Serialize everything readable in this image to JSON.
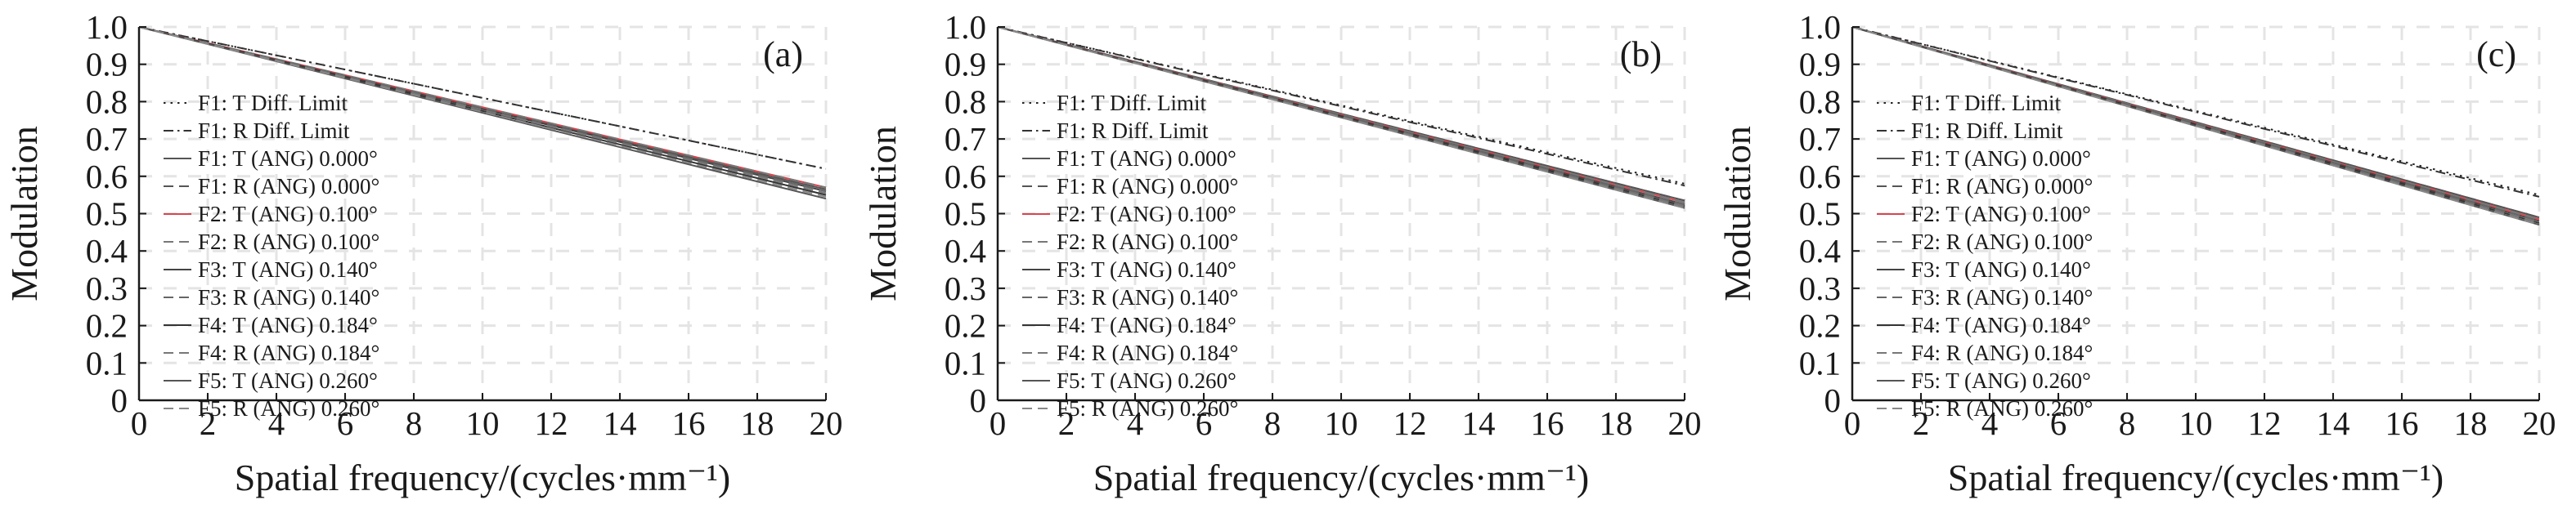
{
  "chart_data": [
    {
      "type": "line",
      "panel_label": "(a)",
      "xlabel": "Spatial frequency/(cycles·mm⁻¹)",
      "ylabel": "Modulation",
      "xlim": [
        0,
        20
      ],
      "ylim": [
        0,
        1.0
      ],
      "x_ticks": [
        "0",
        "2",
        "4",
        "6",
        "8",
        "10",
        "12",
        "14",
        "16",
        "18",
        "20"
      ],
      "y_ticks": [
        "0",
        "0.1",
        "0.2",
        "0.3",
        "0.4",
        "0.5",
        "0.6",
        "0.7",
        "0.8",
        "0.9",
        "1.0"
      ],
      "grid": true,
      "legend_position": "left",
      "series": [
        {
          "name": "F1: T Diff. Limit",
          "style": "dotted",
          "color": "#222222",
          "x": [
            0,
            20
          ],
          "y": [
            1.0,
            0.62
          ]
        },
        {
          "name": "F1: R Diff. Limit",
          "style": "dashdot",
          "color": "#333333",
          "x": [
            0,
            20
          ],
          "y": [
            1.0,
            0.62
          ]
        },
        {
          "name": "F1: T (ANG) 0.000°",
          "style": "solid",
          "color": "#555555",
          "x": [
            0,
            20
          ],
          "y": [
            1.0,
            0.565
          ]
        },
        {
          "name": "F1: R (ANG) 0.000°",
          "style": "dashed",
          "color": "#555555",
          "x": [
            0,
            20
          ],
          "y": [
            1.0,
            0.565
          ]
        },
        {
          "name": "F2: T (ANG) 0.100°",
          "style": "solid",
          "color": "#d8454f",
          "x": [
            0,
            20
          ],
          "y": [
            1.0,
            0.57
          ]
        },
        {
          "name": "F2: R (ANG) 0.100°",
          "style": "dashed",
          "color": "#777777",
          "x": [
            0,
            20
          ],
          "y": [
            1.0,
            0.57
          ]
        },
        {
          "name": "F3: T (ANG) 0.140°",
          "style": "solid",
          "color": "#444444",
          "x": [
            0,
            20
          ],
          "y": [
            1.0,
            0.56
          ]
        },
        {
          "name": "F3: R (ANG) 0.140°",
          "style": "dashed",
          "color": "#666666",
          "x": [
            0,
            20
          ],
          "y": [
            1.0,
            0.56
          ]
        },
        {
          "name": "F4: T (ANG) 0.184°",
          "style": "solid",
          "color": "#333333",
          "x": [
            0,
            20
          ],
          "y": [
            1.0,
            0.55
          ]
        },
        {
          "name": "F4: R (ANG) 0.184°",
          "style": "dashed",
          "color": "#777777",
          "x": [
            0,
            20
          ],
          "y": [
            1.0,
            0.555
          ]
        },
        {
          "name": "F5: T (ANG) 0.260°",
          "style": "solid",
          "color": "#555555",
          "x": [
            0,
            20
          ],
          "y": [
            1.0,
            0.54
          ]
        },
        {
          "name": "F5: R (ANG) 0.260°",
          "style": "dashed",
          "color": "#888888",
          "x": [
            0,
            20
          ],
          "y": [
            1.0,
            0.545
          ]
        }
      ]
    },
    {
      "type": "line",
      "panel_label": "(b)",
      "xlabel": "Spatial frequency/(cycles·mm⁻¹)",
      "ylabel": "Modulation",
      "xlim": [
        0,
        20
      ],
      "ylim": [
        0,
        1.0
      ],
      "x_ticks": [
        "0",
        "2",
        "4",
        "6",
        "8",
        "10",
        "12",
        "14",
        "16",
        "18",
        "20"
      ],
      "y_ticks": [
        "0",
        "0.1",
        "0.2",
        "0.3",
        "0.4",
        "0.5",
        "0.6",
        "0.7",
        "0.8",
        "0.9",
        "1.0"
      ],
      "grid": true,
      "legend_position": "left",
      "series": [
        {
          "name": "F1: T Diff. Limit",
          "style": "dotted",
          "color": "#222222",
          "x": [
            0,
            20
          ],
          "y": [
            1.0,
            0.58
          ]
        },
        {
          "name": "F1: R Diff. Limit",
          "style": "dashdot",
          "color": "#333333",
          "x": [
            0,
            20
          ],
          "y": [
            1.0,
            0.575
          ]
        },
        {
          "name": "F1: T (ANG) 0.000°",
          "style": "solid",
          "color": "#555555",
          "x": [
            0,
            20
          ],
          "y": [
            1.0,
            0.535
          ]
        },
        {
          "name": "F1: R (ANG) 0.000°",
          "style": "dashed",
          "color": "#555555",
          "x": [
            0,
            20
          ],
          "y": [
            1.0,
            0.535
          ]
        },
        {
          "name": "F2: T (ANG) 0.100°",
          "style": "solid",
          "color": "#d8454f",
          "x": [
            0,
            20
          ],
          "y": [
            1.0,
            0.53
          ]
        },
        {
          "name": "F2: R (ANG) 0.100°",
          "style": "dashed",
          "color": "#777777",
          "x": [
            0,
            20
          ],
          "y": [
            1.0,
            0.53
          ]
        },
        {
          "name": "F3: T (ANG) 0.140°",
          "style": "solid",
          "color": "#444444",
          "x": [
            0,
            20
          ],
          "y": [
            1.0,
            0.525
          ]
        },
        {
          "name": "F3: R (ANG) 0.140°",
          "style": "dashed",
          "color": "#666666",
          "x": [
            0,
            20
          ],
          "y": [
            1.0,
            0.525
          ]
        },
        {
          "name": "F4: T (ANG) 0.184°",
          "style": "solid",
          "color": "#333333",
          "x": [
            0,
            20
          ],
          "y": [
            1.0,
            0.52
          ]
        },
        {
          "name": "F4: R (ANG) 0.184°",
          "style": "dashed",
          "color": "#777777",
          "x": [
            0,
            20
          ],
          "y": [
            1.0,
            0.52
          ]
        },
        {
          "name": "F5: T (ANG) 0.260°",
          "style": "solid",
          "color": "#555555",
          "x": [
            0,
            20
          ],
          "y": [
            1.0,
            0.515
          ]
        },
        {
          "name": "F5: R (ANG) 0.260°",
          "style": "dashed",
          "color": "#888888",
          "x": [
            0,
            20
          ],
          "y": [
            1.0,
            0.515
          ]
        }
      ]
    },
    {
      "type": "line",
      "panel_label": "(c)",
      "xlabel": "Spatial frequency/(cycles·mm⁻¹)",
      "ylabel": "Modulation",
      "xlim": [
        0,
        20
      ],
      "ylim": [
        0,
        1.0
      ],
      "x_ticks": [
        "0",
        "2",
        "4",
        "6",
        "8",
        "10",
        "12",
        "14",
        "16",
        "18",
        "20"
      ],
      "y_ticks": [
        "0",
        "0.1",
        "0.2",
        "0.3",
        "0.4",
        "0.5",
        "0.6",
        "0.7",
        "0.8",
        "0.9",
        "1.0"
      ],
      "grid": true,
      "legend_position": "left",
      "series": [
        {
          "name": "F1: T Diff. Limit",
          "style": "dotted",
          "color": "#222222",
          "x": [
            0,
            20
          ],
          "y": [
            1.0,
            0.55
          ]
        },
        {
          "name": "F1: R Diff. Limit",
          "style": "dashdot",
          "color": "#333333",
          "x": [
            0,
            20
          ],
          "y": [
            1.0,
            0.545
          ]
        },
        {
          "name": "F1: T (ANG) 0.000°",
          "style": "solid",
          "color": "#555555",
          "x": [
            0,
            20
          ],
          "y": [
            1.0,
            0.49
          ]
        },
        {
          "name": "F1: R (ANG) 0.000°",
          "style": "dashed",
          "color": "#555555",
          "x": [
            0,
            20
          ],
          "y": [
            1.0,
            0.49
          ]
        },
        {
          "name": "F2: T (ANG) 0.100°",
          "style": "solid",
          "color": "#d8454f",
          "x": [
            0,
            20
          ],
          "y": [
            1.0,
            0.485
          ]
        },
        {
          "name": "F2: R (ANG) 0.100°",
          "style": "dashed",
          "color": "#777777",
          "x": [
            0,
            20
          ],
          "y": [
            1.0,
            0.485
          ]
        },
        {
          "name": "F3: T (ANG) 0.140°",
          "style": "solid",
          "color": "#444444",
          "x": [
            0,
            20
          ],
          "y": [
            1.0,
            0.48
          ]
        },
        {
          "name": "F3: R (ANG) 0.140°",
          "style": "dashed",
          "color": "#666666",
          "x": [
            0,
            20
          ],
          "y": [
            1.0,
            0.48
          ]
        },
        {
          "name": "F4: T (ANG) 0.184°",
          "style": "solid",
          "color": "#333333",
          "x": [
            0,
            20
          ],
          "y": [
            1.0,
            0.475
          ]
        },
        {
          "name": "F4: R (ANG) 0.184°",
          "style": "dashed",
          "color": "#777777",
          "x": [
            0,
            20
          ],
          "y": [
            1.0,
            0.475
          ]
        },
        {
          "name": "F5: T (ANG) 0.260°",
          "style": "solid",
          "color": "#555555",
          "x": [
            0,
            20
          ],
          "y": [
            1.0,
            0.47
          ]
        },
        {
          "name": "F5: R (ANG) 0.260°",
          "style": "dashed",
          "color": "#888888",
          "x": [
            0,
            20
          ],
          "y": [
            1.0,
            0.47
          ]
        }
      ]
    }
  ],
  "colors": {
    "axis": "#1a1a1a",
    "grid": "#e4e4e4"
  }
}
